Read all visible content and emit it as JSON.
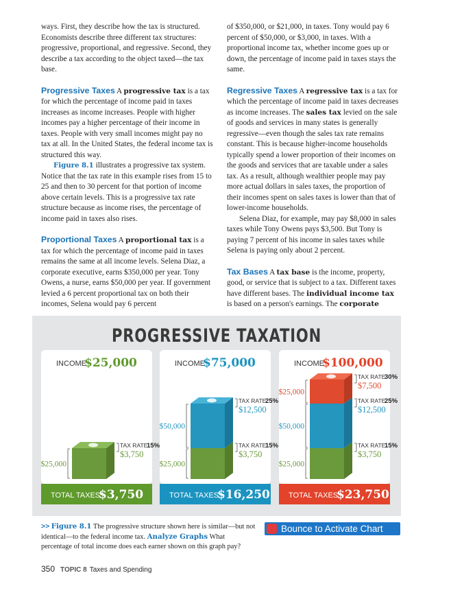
{
  "columns": [
    [
      {
        "runs": [
          {
            "text": "ways. First, they describe how the tax is structured. Economists describe three different tax structures: progressive, proportional, and regressive. Second, they describe a tax according to the object taxed—the tax base."
          }
        ]
      },
      {
        "runs": [
          {
            "text": "Progressive Taxes",
            "style": "heading"
          },
          {
            "text": " A "
          },
          {
            "text": "progressive tax",
            "style": "bold"
          },
          {
            "text": " is a tax for which the percentage of income paid in taxes increases as income increases. People with higher incomes pay a higher percentage of their income in taxes. People with very small incomes might pay no tax at all. In the United States, the federal income tax is structured this way."
          }
        ]
      },
      {
        "indent": true,
        "runs": [
          {
            "text": "Figure 8.1",
            "style": "figref"
          },
          {
            "text": " illustrates a progressive tax system. Notice that the tax rate in this example rises from 15 to 25 and then to 30 percent for that portion of income above certain levels. This is a progressive tax rate structure because as income rises, the percentage of income paid in taxes also rises."
          }
        ]
      },
      {
        "runs": [
          {
            "text": "Proportional Taxes",
            "style": "heading"
          },
          {
            "text": " A "
          },
          {
            "text": "proportional tax",
            "style": "bold"
          },
          {
            "text": " is a tax for which the percentage of income paid in taxes remains the same at all income levels. Selena Diaz, a corporate executive, earns $350,000 per year. Tony Owens, a nurse, earns $50,000 per year. If government levied a 6 percent proportional tax on both their incomes, Selena would pay 6 percent"
          }
        ]
      }
    ],
    [
      {
        "runs": [
          {
            "text": "of $350,000, or $21,000, in taxes. Tony would pay 6 percent of $50,000, or $3,000, in taxes. With a proportional income tax, whether income goes up or down, the percentage of income paid in taxes stays the same."
          }
        ]
      },
      {
        "runs": [
          {
            "text": "Regressive Taxes",
            "style": "heading"
          },
          {
            "text": " A "
          },
          {
            "text": "regressive tax",
            "style": "bold"
          },
          {
            "text": " is a tax for which the percentage of income paid in taxes decreases as income increases. The "
          },
          {
            "text": "sales tax",
            "style": "bold"
          },
          {
            "text": " levied on the sale of goods and services in many states is generally regressive—even though the sales tax rate remains constant. This is because higher-income households typically spend a lower proportion of their incomes on the goods and services that are taxable under a sales tax. As a result, although wealthier people may pay more actual dollars in sales taxes, the proportion of their incomes spent on sales taxes is lower than that of lower-income households."
          }
        ]
      },
      {
        "indent": true,
        "runs": [
          {
            "text": "Selena Diaz, for example, may pay $8,000 in sales taxes while Tony Owens pays $3,500. But Tony is paying 7 percent of his income in sales taxes while Selena is paying only about 2 percent."
          }
        ]
      },
      {
        "runs": [
          {
            "text": "Tax Bases",
            "style": "heading"
          },
          {
            "text": " A "
          },
          {
            "text": "tax base",
            "style": "bold"
          },
          {
            "text": " is the income, property, good, or service that is subject to a tax. Different taxes have different bases. The "
          },
          {
            "text": "individual income tax",
            "style": "bold"
          },
          {
            "text": " is based on a person's earnings. The "
          },
          {
            "text": "corporate",
            "style": "bold"
          }
        ]
      }
    ]
  ],
  "figure": {
    "title": "PROGRESSIVE TAXATION",
    "panels": [
      {
        "income_label": "INCOME",
        "income": "$25,000",
        "total_label": "TOTAL TAXES",
        "total": "$3,750",
        "segments": [
          {
            "amount": "$25,000",
            "rate_label": "TAX RATE",
            "rate": "15%",
            "tax": "$3,750"
          }
        ]
      },
      {
        "income_label": "INCOME",
        "income": "$75,000",
        "total_label": "TOTAL TAXES",
        "total": "$16,250",
        "segments": [
          {
            "amount": "$25,000",
            "rate_label": "TAX RATE",
            "rate": "15%",
            "tax": "$3,750"
          },
          {
            "amount": "$50,000",
            "rate_label": "TAX RATE",
            "rate": "25%",
            "tax": "$12,500"
          }
        ]
      },
      {
        "income_label": "INCOME",
        "income": "$100,000",
        "total_label": "TOTAL TAXES",
        "total": "$23,750",
        "segments": [
          {
            "amount": "$25,000",
            "rate_label": "TAX RATE",
            "rate": "15%",
            "tax": "$3,750"
          },
          {
            "amount": "$50,000",
            "rate_label": "TAX RATE",
            "rate": "25%",
            "tax": "$12,500"
          },
          {
            "amount": "$25,000",
            "rate_label": "TAX RATE",
            "rate": "30%",
            "tax": "$7,500"
          }
        ]
      }
    ]
  },
  "caption": {
    "marker": ">>",
    "runs": [
      {
        "text": "Figure 8.1",
        "style": "figref"
      },
      {
        "text": " The progressive structure shown here is similar—but not identical—to the federal income tax. "
      },
      {
        "text": "Analyze Graphs",
        "style": "figref"
      },
      {
        "text": " What percentage of total income does each earner shown on this graph pay?"
      }
    ]
  },
  "button": "Bounce to Activate Chart",
  "footer": {
    "page": "350",
    "topic": "TOPIC 8",
    "title": "Taxes and Spending"
  }
}
